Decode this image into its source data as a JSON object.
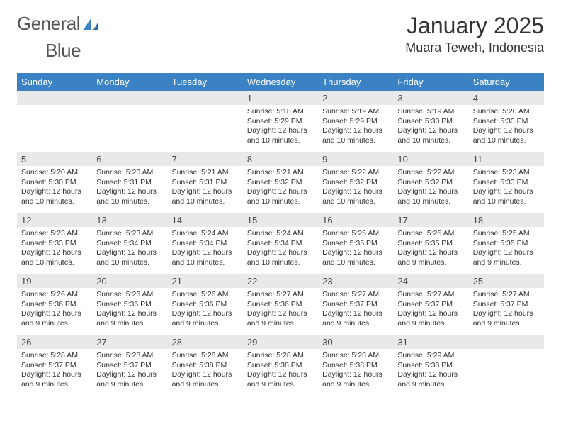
{
  "brand": {
    "name_part1": "General",
    "name_part2": "Blue",
    "logo_fill": "#3b82c4",
    "text_color": "#555555"
  },
  "header": {
    "title": "January 2025",
    "location": "Muara Teweh, Indonesia"
  },
  "colors": {
    "header_bg": "#3b82c4",
    "header_text": "#ffffff",
    "daynum_bg": "#e9e9e9",
    "border": "#3b82c4",
    "body_text": "#333333"
  },
  "fonts": {
    "title_size": 32,
    "location_size": 18,
    "weekday_size": 13,
    "daynum_size": 13,
    "detail_size": 10.5
  },
  "weekdays": [
    "Sunday",
    "Monday",
    "Tuesday",
    "Wednesday",
    "Thursday",
    "Friday",
    "Saturday"
  ],
  "grid": {
    "rows": 5,
    "cols": 7,
    "leading_blanks": 3,
    "trailing_blanks": 1
  },
  "days": [
    {
      "n": "1",
      "sunrise": "Sunrise: 5:18 AM",
      "sunset": "Sunset: 5:29 PM",
      "daylight1": "Daylight: 12 hours",
      "daylight2": "and 10 minutes."
    },
    {
      "n": "2",
      "sunrise": "Sunrise: 5:19 AM",
      "sunset": "Sunset: 5:29 PM",
      "daylight1": "Daylight: 12 hours",
      "daylight2": "and 10 minutes."
    },
    {
      "n": "3",
      "sunrise": "Sunrise: 5:19 AM",
      "sunset": "Sunset: 5:30 PM",
      "daylight1": "Daylight: 12 hours",
      "daylight2": "and 10 minutes."
    },
    {
      "n": "4",
      "sunrise": "Sunrise: 5:20 AM",
      "sunset": "Sunset: 5:30 PM",
      "daylight1": "Daylight: 12 hours",
      "daylight2": "and 10 minutes."
    },
    {
      "n": "5",
      "sunrise": "Sunrise: 5:20 AM",
      "sunset": "Sunset: 5:30 PM",
      "daylight1": "Daylight: 12 hours",
      "daylight2": "and 10 minutes."
    },
    {
      "n": "6",
      "sunrise": "Sunrise: 5:20 AM",
      "sunset": "Sunset: 5:31 PM",
      "daylight1": "Daylight: 12 hours",
      "daylight2": "and 10 minutes."
    },
    {
      "n": "7",
      "sunrise": "Sunrise: 5:21 AM",
      "sunset": "Sunset: 5:31 PM",
      "daylight1": "Daylight: 12 hours",
      "daylight2": "and 10 minutes."
    },
    {
      "n": "8",
      "sunrise": "Sunrise: 5:21 AM",
      "sunset": "Sunset: 5:32 PM",
      "daylight1": "Daylight: 12 hours",
      "daylight2": "and 10 minutes."
    },
    {
      "n": "9",
      "sunrise": "Sunrise: 5:22 AM",
      "sunset": "Sunset: 5:32 PM",
      "daylight1": "Daylight: 12 hours",
      "daylight2": "and 10 minutes."
    },
    {
      "n": "10",
      "sunrise": "Sunrise: 5:22 AM",
      "sunset": "Sunset: 5:32 PM",
      "daylight1": "Daylight: 12 hours",
      "daylight2": "and 10 minutes."
    },
    {
      "n": "11",
      "sunrise": "Sunrise: 5:23 AM",
      "sunset": "Sunset: 5:33 PM",
      "daylight1": "Daylight: 12 hours",
      "daylight2": "and 10 minutes."
    },
    {
      "n": "12",
      "sunrise": "Sunrise: 5:23 AM",
      "sunset": "Sunset: 5:33 PM",
      "daylight1": "Daylight: 12 hours",
      "daylight2": "and 10 minutes."
    },
    {
      "n": "13",
      "sunrise": "Sunrise: 5:23 AM",
      "sunset": "Sunset: 5:34 PM",
      "daylight1": "Daylight: 12 hours",
      "daylight2": "and 10 minutes."
    },
    {
      "n": "14",
      "sunrise": "Sunrise: 5:24 AM",
      "sunset": "Sunset: 5:34 PM",
      "daylight1": "Daylight: 12 hours",
      "daylight2": "and 10 minutes."
    },
    {
      "n": "15",
      "sunrise": "Sunrise: 5:24 AM",
      "sunset": "Sunset: 5:34 PM",
      "daylight1": "Daylight: 12 hours",
      "daylight2": "and 10 minutes."
    },
    {
      "n": "16",
      "sunrise": "Sunrise: 5:25 AM",
      "sunset": "Sunset: 5:35 PM",
      "daylight1": "Daylight: 12 hours",
      "daylight2": "and 10 minutes."
    },
    {
      "n": "17",
      "sunrise": "Sunrise: 5:25 AM",
      "sunset": "Sunset: 5:35 PM",
      "daylight1": "Daylight: 12 hours",
      "daylight2": "and 9 minutes."
    },
    {
      "n": "18",
      "sunrise": "Sunrise: 5:25 AM",
      "sunset": "Sunset: 5:35 PM",
      "daylight1": "Daylight: 12 hours",
      "daylight2": "and 9 minutes."
    },
    {
      "n": "19",
      "sunrise": "Sunrise: 5:26 AM",
      "sunset": "Sunset: 5:36 PM",
      "daylight1": "Daylight: 12 hours",
      "daylight2": "and 9 minutes."
    },
    {
      "n": "20",
      "sunrise": "Sunrise: 5:26 AM",
      "sunset": "Sunset: 5:36 PM",
      "daylight1": "Daylight: 12 hours",
      "daylight2": "and 9 minutes."
    },
    {
      "n": "21",
      "sunrise": "Sunrise: 5:26 AM",
      "sunset": "Sunset: 5:36 PM",
      "daylight1": "Daylight: 12 hours",
      "daylight2": "and 9 minutes."
    },
    {
      "n": "22",
      "sunrise": "Sunrise: 5:27 AM",
      "sunset": "Sunset: 5:36 PM",
      "daylight1": "Daylight: 12 hours",
      "daylight2": "and 9 minutes."
    },
    {
      "n": "23",
      "sunrise": "Sunrise: 5:27 AM",
      "sunset": "Sunset: 5:37 PM",
      "daylight1": "Daylight: 12 hours",
      "daylight2": "and 9 minutes."
    },
    {
      "n": "24",
      "sunrise": "Sunrise: 5:27 AM",
      "sunset": "Sunset: 5:37 PM",
      "daylight1": "Daylight: 12 hours",
      "daylight2": "and 9 minutes."
    },
    {
      "n": "25",
      "sunrise": "Sunrise: 5:27 AM",
      "sunset": "Sunset: 5:37 PM",
      "daylight1": "Daylight: 12 hours",
      "daylight2": "and 9 minutes."
    },
    {
      "n": "26",
      "sunrise": "Sunrise: 5:28 AM",
      "sunset": "Sunset: 5:37 PM",
      "daylight1": "Daylight: 12 hours",
      "daylight2": "and 9 minutes."
    },
    {
      "n": "27",
      "sunrise": "Sunrise: 5:28 AM",
      "sunset": "Sunset: 5:37 PM",
      "daylight1": "Daylight: 12 hours",
      "daylight2": "and 9 minutes."
    },
    {
      "n": "28",
      "sunrise": "Sunrise: 5:28 AM",
      "sunset": "Sunset: 5:38 PM",
      "daylight1": "Daylight: 12 hours",
      "daylight2": "and 9 minutes."
    },
    {
      "n": "29",
      "sunrise": "Sunrise: 5:28 AM",
      "sunset": "Sunset: 5:38 PM",
      "daylight1": "Daylight: 12 hours",
      "daylight2": "and 9 minutes."
    },
    {
      "n": "30",
      "sunrise": "Sunrise: 5:28 AM",
      "sunset": "Sunset: 5:38 PM",
      "daylight1": "Daylight: 12 hours",
      "daylight2": "and 9 minutes."
    },
    {
      "n": "31",
      "sunrise": "Sunrise: 5:29 AM",
      "sunset": "Sunset: 5:38 PM",
      "daylight1": "Daylight: 12 hours",
      "daylight2": "and 9 minutes."
    }
  ]
}
